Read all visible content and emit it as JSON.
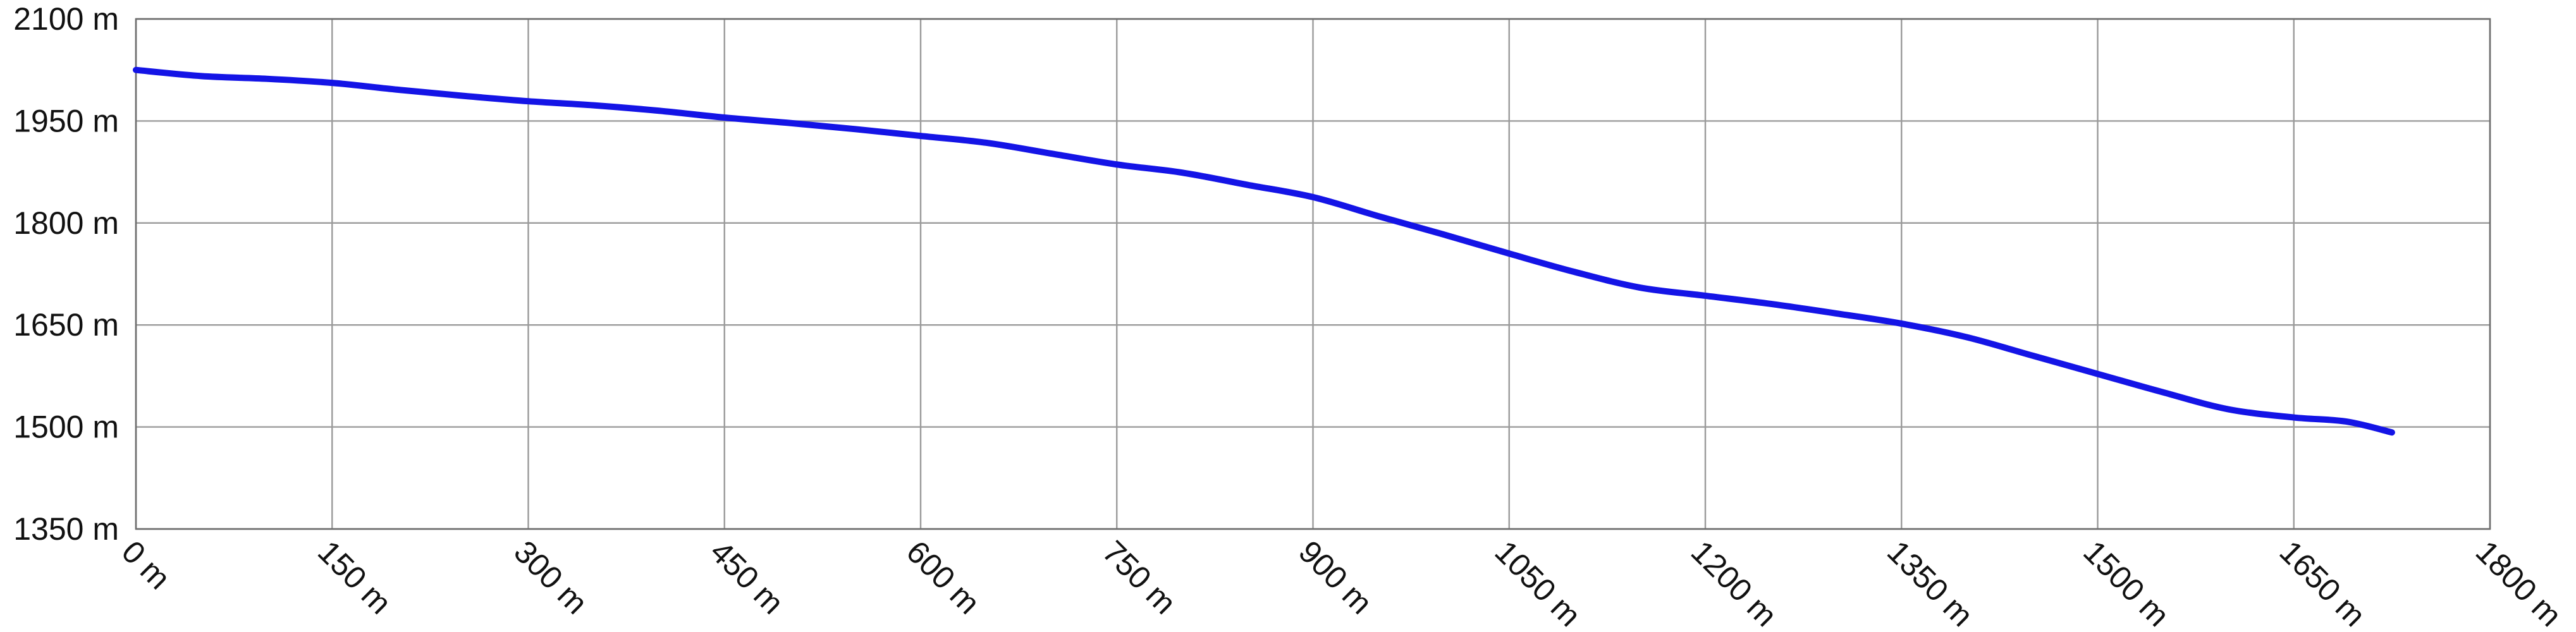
{
  "chart_data": {
    "type": "line",
    "title": "",
    "xlabel": "",
    "ylabel": "",
    "x_unit": "m",
    "y_unit": "m",
    "xlim": [
      0,
      1800
    ],
    "ylim": [
      1350,
      2100
    ],
    "grid": true,
    "x_ticks": [
      0,
      150,
      300,
      450,
      600,
      750,
      900,
      1050,
      1200,
      1350,
      1500,
      1650,
      1800
    ],
    "y_ticks": [
      1350,
      1500,
      1650,
      1800,
      1950,
      2100
    ],
    "x_tick_labels": [
      "0 m",
      "150 m",
      "300 m",
      "450 m",
      "600 m",
      "750 m",
      "900 m",
      "1050 m",
      "1200 m",
      "1350 m",
      "1500 m",
      "1650 m",
      "1800 m"
    ],
    "y_tick_labels": [
      "1350 m",
      "1500 m",
      "1650 m",
      "1800 m",
      "1950 m",
      "2100 m"
    ],
    "line_color": "#1414e6",
    "series": [
      {
        "x": [
          0,
          50,
          100,
          150,
          200,
          250,
          300,
          350,
          400,
          450,
          500,
          550,
          600,
          650,
          700,
          750,
          800,
          850,
          900,
          950,
          1000,
          1050,
          1100,
          1150,
          1200,
          1250,
          1300,
          1350,
          1400,
          1450,
          1500,
          1550,
          1600,
          1650,
          1690,
          1725
        ],
        "y": [
          2025,
          2016,
          2012,
          2006,
          1996,
          1987,
          1979,
          1973,
          1965,
          1955,
          1947,
          1938,
          1928,
          1918,
          1902,
          1886,
          1874,
          1856,
          1838,
          1810,
          1783,
          1755,
          1728,
          1705,
          1693,
          1681,
          1667,
          1652,
          1632,
          1605,
          1578,
          1551,
          1526,
          1514,
          1508,
          1492
        ]
      }
    ]
  }
}
